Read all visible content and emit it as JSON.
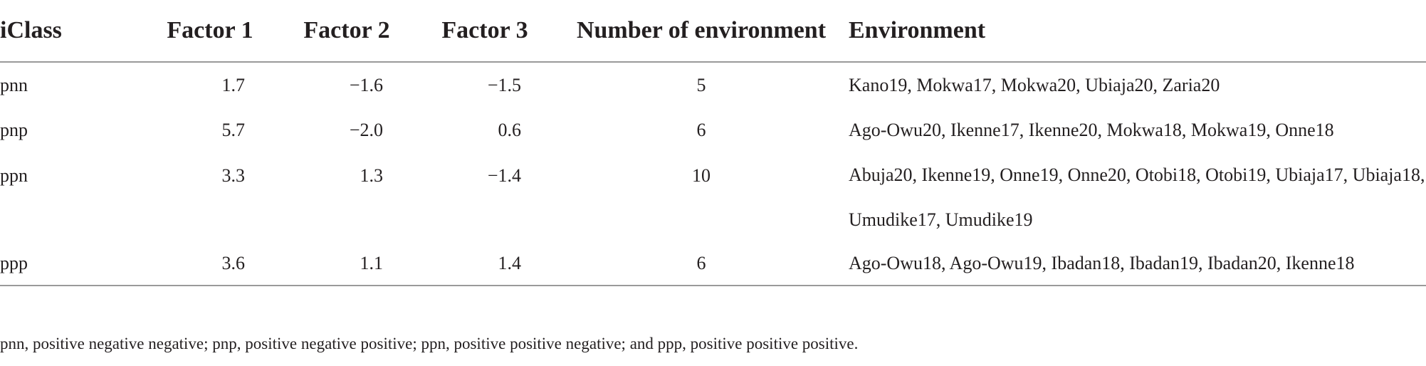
{
  "table": {
    "headers": {
      "iclass": "iClass",
      "factor1": "Factor 1",
      "factor2": "Factor 2",
      "factor3": "Factor 3",
      "num_env": "Number of environment",
      "environment": "Environment"
    },
    "rows": [
      {
        "iclass": "pnn",
        "factor1": "1.7",
        "factor2": "−1.6",
        "factor3": "−1.5",
        "num_env": "5",
        "environment": "Kano19, Mokwa17, Mokwa20, Ubiaja20, Zaria20"
      },
      {
        "iclass": "pnp",
        "factor1": "5.7",
        "factor2": "−2.0",
        "factor3": "0.6",
        "num_env": "6",
        "environment": "Ago-Owu20, Ikenne17, Ikenne20, Mokwa18, Mokwa19, Onne18"
      },
      {
        "iclass": "ppn",
        "factor1": "3.3",
        "factor2": "1.3",
        "factor3": "−1.4",
        "num_env": "10",
        "environment": "Abuja20, Ikenne19, Onne19, Onne20, Otobi18, Otobi19, Ubiaja17, Ubiaja18, Umudike17, Umudike19"
      },
      {
        "iclass": "ppp",
        "factor1": "3.6",
        "factor2": "1.1",
        "factor3": "1.4",
        "num_env": "6",
        "environment": "Ago-Owu18, Ago-Owu19, Ibadan18, Ibadan19, Ibadan20, Ikenne18"
      }
    ]
  },
  "footnote": "pnn, positive negative negative; pnp, positive negative positive; ppn, positive positive negative; and ppp, positive positive positive."
}
